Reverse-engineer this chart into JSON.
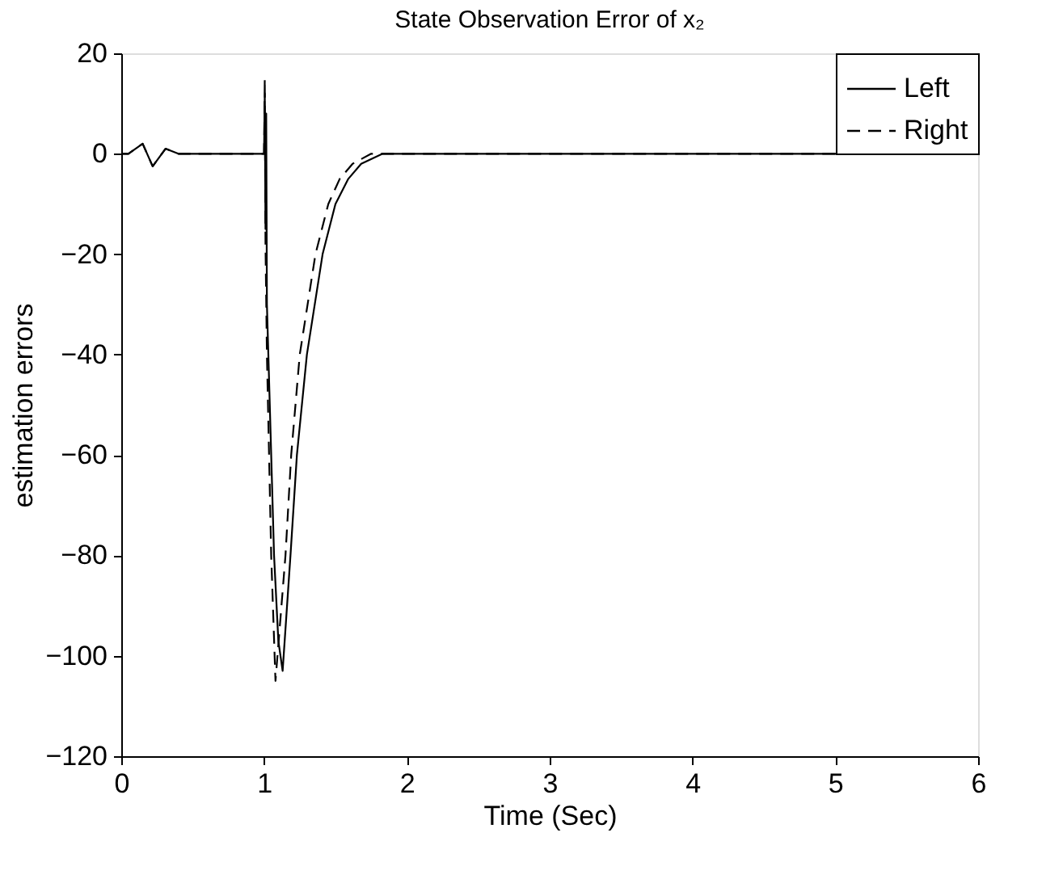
{
  "chart_data": {
    "type": "line",
    "title": "State Observation Error of x₂",
    "xlabel": "Time (Sec)",
    "ylabel": "estimation errors",
    "xlim": [
      0,
      6
    ],
    "xticks": [
      0,
      1,
      2,
      3,
      4,
      5,
      6
    ],
    "ylim": [
      -120,
      20
    ],
    "yticks": [
      -120,
      -100,
      -80,
      -60,
      -40,
      -20,
      0,
      20
    ],
    "grid": false,
    "legend": "top right",
    "marker": "none",
    "series": [
      {
        "name": "Left",
        "color": "#000000",
        "line_style": "solid",
        "x": [
          0,
          0.05,
          0.15,
          0.22,
          0.31,
          0.4,
          0.6,
          1.0,
          1.005,
          1.01,
          1.015,
          1.02,
          1.04,
          1.07,
          1.1,
          1.13,
          1.185,
          1.23,
          1.3,
          1.41,
          1.5,
          1.59,
          1.68,
          1.83,
          3,
          6
        ],
        "values": [
          0,
          0,
          2,
          -2.5,
          1,
          0,
          0,
          0,
          12,
          -15,
          8,
          -30,
          -50,
          -80,
          -97,
          -103,
          -80,
          -60,
          -40,
          -20,
          -10,
          -5,
          -2,
          0,
          0,
          0
        ]
      },
      {
        "name": "Right",
        "color": "#000000",
        "line_style": "dashed",
        "x": [
          0,
          0.05,
          0.15,
          0.22,
          0.31,
          0.4,
          0.6,
          1.0,
          1.005,
          1.01,
          1.02,
          1.05,
          1.08,
          1.15,
          1.19,
          1.25,
          1.36,
          1.45,
          1.53,
          1.62,
          1.75,
          3,
          6
        ],
        "values": [
          0,
          0,
          2,
          -2.5,
          1,
          0,
          0,
          0,
          15,
          -18,
          -40,
          -80,
          -105,
          -80,
          -60,
          -40,
          -20,
          -10,
          -5,
          -2,
          0,
          0,
          0
        ]
      }
    ]
  }
}
